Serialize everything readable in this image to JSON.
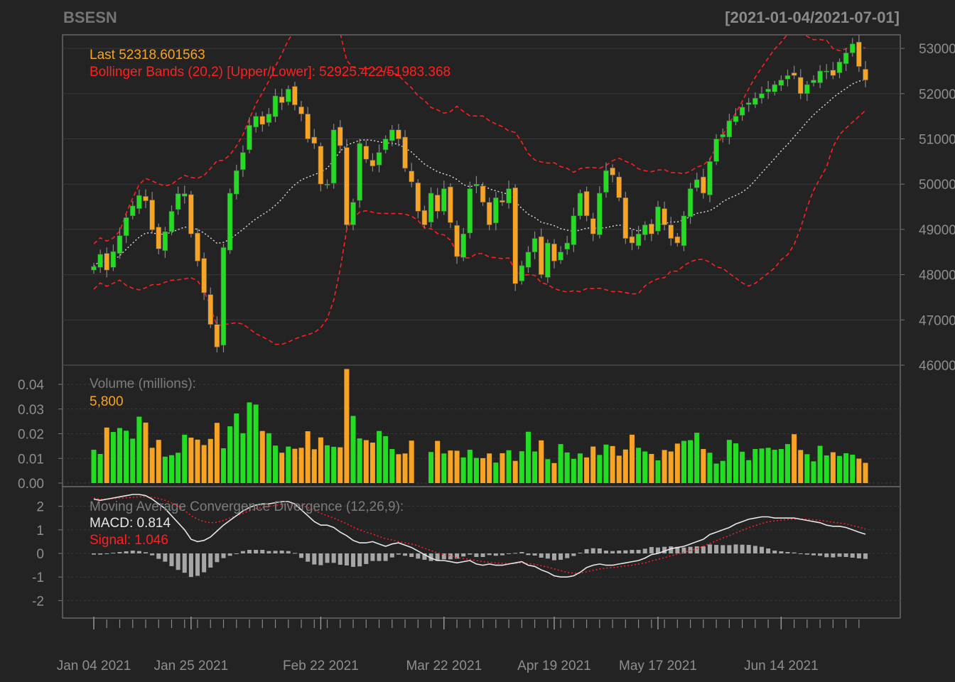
{
  "header": {
    "symbol": "BSESN",
    "date_range": "[2021-01-04/2021-07-01]"
  },
  "colors": {
    "background": "#232323",
    "up": "#22dd22",
    "down": "#f7a324",
    "bands": "#ff2020",
    "sma": "#e0e0e0",
    "macd": "#e6e6e6",
    "signal": "#ff2020",
    "histogram": "#a6a6a6",
    "grid": "#3a3a3a",
    "axis_text": "#8e8e8e"
  },
  "chart_data": [
    {
      "type": "candlestick",
      "title": "BSESN",
      "legend": {
        "last": "Last 52318.601563",
        "bands": "Bollinger Bands (20,2) [Upper/Lower]: 52925.422/51983.368"
      },
      "ylim": [
        46000,
        53300
      ],
      "ytick_labels": [
        "53000",
        "52000",
        "51000",
        "50000",
        "49000",
        "48000",
        "47000",
        "46000"
      ],
      "yticks": [
        53000,
        52000,
        51000,
        50000,
        49000,
        48000,
        47000,
        46000
      ],
      "xtick_labels": [
        "Jan 04 2021",
        "Jan 25 2021",
        "Feb 22 2021",
        "Mar 22 2021",
        "Apr 19 2021",
        "May 17 2021",
        "Jun 14 2021"
      ],
      "xtick_index": [
        0,
        15,
        35,
        54,
        71,
        87,
        106
      ],
      "n_days": 120,
      "closes": [
        48180,
        48450,
        48100,
        48510,
        48860,
        49260,
        49520,
        49750,
        49630,
        48990,
        48570,
        48950,
        49400,
        49790,
        49790,
        48900,
        48300,
        47600,
        46900,
        46400,
        48600,
        49800,
        50300,
        50700,
        51300,
        51500,
        51320,
        51550,
        51950,
        51800,
        52100,
        51750,
        51550,
        51000,
        50900,
        50000,
        50000,
        51200,
        50850,
        49100,
        49600,
        50900,
        50550,
        50400,
        50700,
        51000,
        51200,
        51000,
        50350,
        50050,
        49400,
        49100,
        49800,
        49400,
        49900,
        49150,
        48400,
        48900,
        49900,
        50000,
        49600,
        49100,
        49700,
        49600,
        49900,
        47800,
        48200,
        48500,
        48800,
        48000,
        48700,
        48300,
        48500,
        48700,
        49300,
        49800,
        49300,
        48900,
        49800,
        50300,
        50200,
        49700,
        48800,
        48700,
        48900,
        49100,
        48900,
        49500,
        49100,
        48800,
        48700,
        49300,
        49900,
        50100,
        49800,
        50500,
        51000,
        51100,
        51400,
        51500,
        51700,
        51800,
        51900,
        52000,
        52100,
        52200,
        52300,
        52400,
        52400,
        52000,
        52200,
        52300,
        52500,
        52500,
        52400,
        52700,
        52900,
        53100,
        52600,
        52300
      ],
      "bollinger_upper_path": "Jan→Jan 25 ~50300, Feb 10 peak 53500, Mar ~51500, Apr ~50400, May 12 ~49800, Jun ~53000",
      "volume": {
        "label": "Volume (millions):",
        "last": "5,800",
        "ylim": [
          0,
          0.045
        ],
        "yticks": [
          0.0,
          0.01,
          0.02,
          0.03,
          0.04
        ],
        "ytick_labels": [
          "0.00",
          "0.01",
          "0.02",
          "0.03",
          "0.04"
        ],
        "values": [
          0.0135,
          0.0118,
          0.0225,
          0.0207,
          0.0223,
          0.0212,
          0.018,
          0.0269,
          0.0245,
          0.0143,
          0.0175,
          0.0107,
          0.0113,
          0.0123,
          0.0196,
          0.0184,
          0.0176,
          0.0154,
          0.0179,
          0.0244,
          0.0141,
          0.023,
          0.0282,
          0.0202,
          0.0327,
          0.0318,
          0.0211,
          0.0202,
          0.0152,
          0.0123,
          0.0148,
          0.0139,
          0.0143,
          0.021,
          0.0137,
          0.0185,
          0.0153,
          0.0147,
          0.0145,
          0.0462,
          0.0272,
          0.0181,
          0.0174,
          0.0164,
          0.0211,
          0.019,
          0.0138,
          0.0117,
          0.012,
          0.0172,
          0.0,
          0.0,
          0.0126,
          0.0171,
          0.012,
          0.0132,
          0.0131,
          0.0104,
          0.0135,
          0.0102,
          0.0101,
          0.012,
          0.0083,
          0.0121,
          0.0133,
          0.009,
          0.0129,
          0.0208,
          0.0128,
          0.0173,
          0.0097,
          0.0081,
          0.0158,
          0.0124,
          0.0098,
          0.012,
          0.0104,
          0.0148,
          0.0114,
          0.0156,
          0.015,
          0.0111,
          0.0136,
          0.0196,
          0.0143,
          0.0128,
          0.0118,
          0.0092,
          0.0134,
          0.0128,
          0.016,
          0.0171,
          0.0174,
          0.0204,
          0.0138,
          0.0123,
          0.0079,
          0.009,
          0.0175,
          0.0161,
          0.0127,
          0.0093,
          0.0138,
          0.014,
          0.0143,
          0.0135,
          0.0138,
          0.0158,
          0.0198,
          0.0134,
          0.0117,
          0.0088,
          0.0151,
          0.0112,
          0.0125,
          0.011,
          0.0121,
          0.0115,
          0.0099,
          0.0082
        ],
        "up_flags_note": "green for up days, orange for down days"
      },
      "macd": {
        "label": "Moving Average Convergence Divergence (12,26,9):",
        "macd_label": "MACD: 0.814",
        "signal_label": "Signal: 1.046",
        "ylim": [
          -2.8,
          2.7
        ],
        "yticks": [
          2,
          1,
          0,
          -1,
          -2
        ],
        "ytick_labels": [
          "2",
          "1",
          "0",
          "-1",
          "-2"
        ],
        "macd_values": [
          2.3,
          2.25,
          2.3,
          2.35,
          2.4,
          2.45,
          2.5,
          2.5,
          2.45,
          2.3,
          2.1,
          1.9,
          1.6,
          1.3,
          1.0,
          0.6,
          0.5,
          0.55,
          0.7,
          0.95,
          1.2,
          1.4,
          1.6,
          1.8,
          1.95,
          2.05,
          2.1,
          2.1,
          2.15,
          2.2,
          2.2,
          2.1,
          1.85,
          1.6,
          1.35,
          1.2,
          1.2,
          1.1,
          0.9,
          0.75,
          0.55,
          0.45,
          0.45,
          0.5,
          0.4,
          0.3,
          0.4,
          0.45,
          0.35,
          0.25,
          0.1,
          -0.05,
          -0.2,
          -0.3,
          -0.3,
          -0.35,
          -0.4,
          -0.35,
          -0.3,
          -0.45,
          -0.5,
          -0.45,
          -0.5,
          -0.5,
          -0.45,
          -0.4,
          -0.35,
          -0.5,
          -0.55,
          -0.7,
          -0.8,
          -0.95,
          -1.0,
          -1.0,
          -0.95,
          -0.8,
          -0.6,
          -0.5,
          -0.45,
          -0.5,
          -0.5,
          -0.45,
          -0.4,
          -0.35,
          -0.3,
          -0.2,
          -0.05,
          0.0,
          0.1,
          0.2,
          0.25,
          0.3,
          0.4,
          0.5,
          0.6,
          0.8,
          0.9,
          1.0,
          1.1,
          1.25,
          1.35,
          1.45,
          1.5,
          1.55,
          1.55,
          1.5,
          1.5,
          1.5,
          1.5,
          1.45,
          1.4,
          1.35,
          1.3,
          1.2,
          1.15,
          1.15,
          1.1,
          1.0,
          0.9,
          0.814
        ],
        "signal_values": [
          2.35,
          2.3,
          2.3,
          2.32,
          2.34,
          2.36,
          2.38,
          2.4,
          2.4,
          2.38,
          2.33,
          2.25,
          2.14,
          2.0,
          1.82,
          1.6,
          1.45,
          1.35,
          1.3,
          1.32,
          1.4,
          1.5,
          1.6,
          1.7,
          1.8,
          1.9,
          1.95,
          2.0,
          2.04,
          2.08,
          2.1,
          2.08,
          2.04,
          1.95,
          1.82,
          1.7,
          1.6,
          1.5,
          1.38,
          1.26,
          1.12,
          1.0,
          0.9,
          0.82,
          0.72,
          0.62,
          0.57,
          0.5,
          0.45,
          0.4,
          0.32,
          0.22,
          0.12,
          0.02,
          -0.05,
          -0.1,
          -0.18,
          -0.22,
          -0.25,
          -0.3,
          -0.35,
          -0.38,
          -0.4,
          -0.42,
          -0.43,
          -0.42,
          -0.41,
          -0.43,
          -0.46,
          -0.52,
          -0.58,
          -0.66,
          -0.73,
          -0.8,
          -0.84,
          -0.83,
          -0.78,
          -0.72,
          -0.66,
          -0.62,
          -0.6,
          -0.57,
          -0.53,
          -0.5,
          -0.45,
          -0.4,
          -0.32,
          -0.25,
          -0.18,
          -0.1,
          -0.03,
          0.05,
          0.12,
          0.2,
          0.3,
          0.42,
          0.54,
          0.65,
          0.75,
          0.87,
          0.98,
          1.09,
          1.18,
          1.27,
          1.34,
          1.38,
          1.41,
          1.44,
          1.46,
          1.46,
          1.45,
          1.43,
          1.4,
          1.36,
          1.32,
          1.29,
          1.25,
          1.18,
          1.11,
          1.046
        ]
      }
    }
  ]
}
